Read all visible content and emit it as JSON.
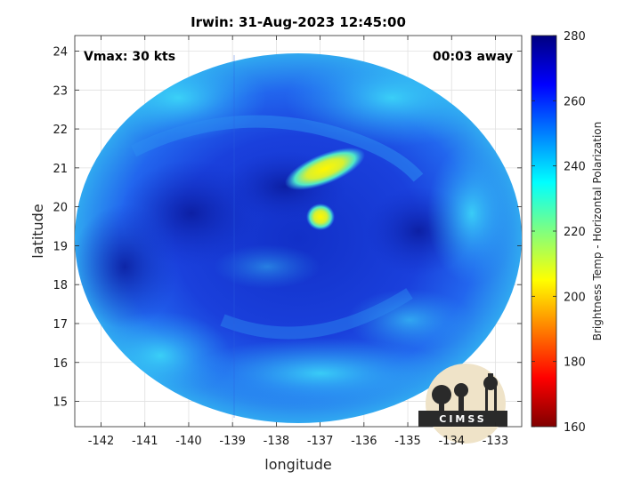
{
  "chart_data": {
    "type": "heatmap",
    "title": "Irwin: 31-Aug-2023 12:45:00",
    "xlabel": "longitude",
    "ylabel": "latitude",
    "x_ticks": [
      -142,
      -141,
      -140,
      -139,
      -138,
      -137,
      -136,
      -135,
      -134,
      -133
    ],
    "y_ticks": [
      15,
      16,
      17,
      18,
      19,
      20,
      21,
      22,
      23,
      24
    ],
    "xlim": [
      -142.6,
      -132.4
    ],
    "ylim": [
      14.35,
      24.4
    ],
    "grid": true,
    "colorbar": {
      "label": "Brightness Temp - Horizontal Polarization",
      "ticks": [
        160,
        180,
        200,
        220,
        240,
        260,
        280
      ],
      "range": [
        160,
        280
      ],
      "colormap": "jet"
    },
    "annotations": {
      "vmax": "Vmax: 30 kts",
      "away": "00:03 away"
    },
    "swath_center": {
      "lon": -137.5,
      "lat": 19.4
    },
    "features": [
      {
        "name": "cold cloud band",
        "lon": -137.3,
        "lat": 20.9,
        "min_temp": 205
      },
      {
        "name": "cold cloud patch",
        "lon": -136.9,
        "lat": 19.7,
        "min_temp": 215
      }
    ]
  },
  "logo": {
    "text": "CIMSS"
  },
  "colors": {
    "background": "#ffffff",
    "ocean_warm": "#1b3fe0",
    "cold_core": "#ffee00"
  }
}
